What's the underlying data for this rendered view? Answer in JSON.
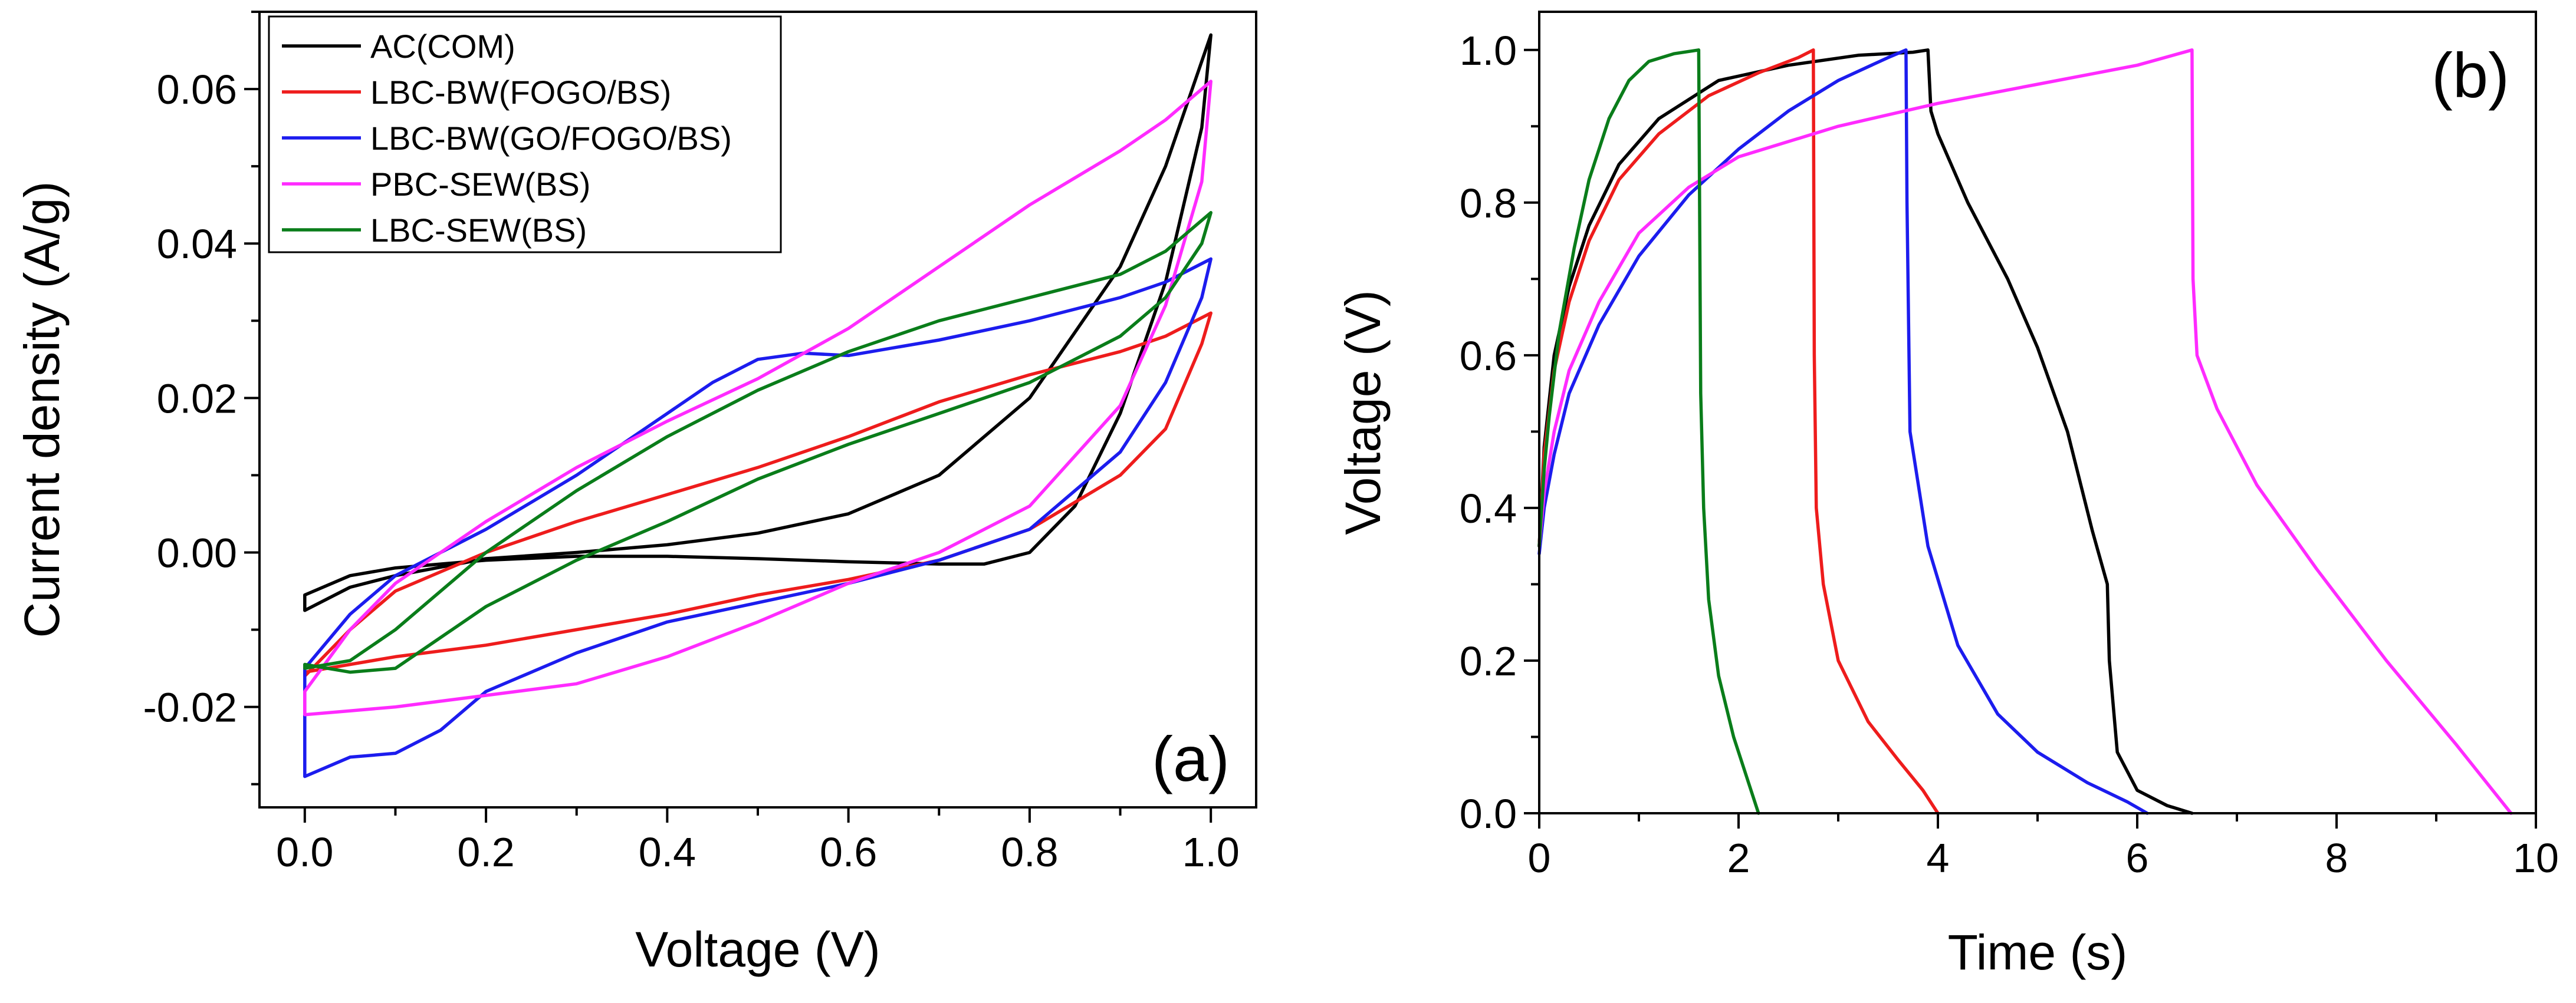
{
  "colors": {
    "black": "#000000",
    "red": "#ee1c1c",
    "blue": "#1c1cee",
    "magenta": "#ff2bff",
    "green": "#0a7d1a"
  },
  "chart_data": [
    {
      "id": "a",
      "type": "line",
      "panel_label": "(a)",
      "xlabel": "Voltage (V)",
      "ylabel": "Current density (A/g)",
      "xlim": [
        -0.05,
        1.05
      ],
      "ylim": [
        -0.033,
        0.07
      ],
      "xticks": [
        0.0,
        0.2,
        0.4,
        0.6,
        0.8,
        1.0
      ],
      "xtick_labels": [
        "0.0",
        "0.2",
        "0.4",
        "0.6",
        "0.8",
        "1.0"
      ],
      "yticks": [
        -0.02,
        0.0,
        0.02,
        0.04,
        0.06
      ],
      "ytick_labels": [
        "-0.02",
        "0.00",
        "0.02",
        "0.04",
        "0.06"
      ],
      "grid": false,
      "legend": "top-left",
      "series": [
        {
          "name": "AC(COM)",
          "color": "#000000",
          "x": [
            0.0,
            0.05,
            0.1,
            0.2,
            0.3,
            0.4,
            0.5,
            0.6,
            0.7,
            0.8,
            0.9,
            0.95,
            1.0,
            0.99,
            0.95,
            0.9,
            0.85,
            0.8,
            0.75,
            0.7,
            0.6,
            0.5,
            0.4,
            0.3,
            0.2,
            0.1,
            0.05,
            0.0
          ],
          "y": [
            -0.0075,
            -0.0045,
            -0.003,
            -0.0008,
            0.0,
            0.001,
            0.0025,
            0.005,
            0.01,
            0.02,
            0.037,
            0.05,
            0.067,
            0.055,
            0.035,
            0.018,
            0.006,
            0.0,
            -0.0015,
            -0.0015,
            -0.0012,
            -0.0008,
            -0.0005,
            -0.0005,
            -0.001,
            -0.002,
            -0.003,
            -0.0055
          ]
        },
        {
          "name": "LBC-BW(FOGO/BS)",
          "color": "#ee1c1c",
          "x": [
            0.0,
            0.05,
            0.1,
            0.2,
            0.3,
            0.4,
            0.5,
            0.6,
            0.7,
            0.8,
            0.9,
            0.95,
            1.0,
            0.99,
            0.95,
            0.9,
            0.8,
            0.7,
            0.6,
            0.5,
            0.4,
            0.3,
            0.2,
            0.1,
            0.05,
            0.0
          ],
          "y": [
            -0.016,
            -0.01,
            -0.005,
            0.0,
            0.004,
            0.0075,
            0.011,
            0.015,
            0.0195,
            0.023,
            0.026,
            0.028,
            0.031,
            0.027,
            0.016,
            0.01,
            0.003,
            -0.001,
            -0.0035,
            -0.0055,
            -0.008,
            -0.01,
            -0.012,
            -0.0135,
            -0.0145,
            -0.0155
          ]
        },
        {
          "name": "LBC-BW(GO/FOGO/BS)",
          "color": "#1c1cee",
          "x": [
            0.0,
            0.05,
            0.1,
            0.2,
            0.3,
            0.4,
            0.45,
            0.5,
            0.55,
            0.6,
            0.7,
            0.8,
            0.9,
            0.95,
            1.0,
            0.99,
            0.95,
            0.9,
            0.8,
            0.7,
            0.6,
            0.5,
            0.4,
            0.3,
            0.2,
            0.15,
            0.1,
            0.05,
            0.0
          ],
          "y": [
            -0.015,
            -0.008,
            -0.003,
            0.003,
            0.01,
            0.018,
            0.022,
            0.025,
            0.0258,
            0.0255,
            0.0275,
            0.03,
            0.033,
            0.035,
            0.038,
            0.033,
            0.022,
            0.013,
            0.003,
            -0.001,
            -0.004,
            -0.0065,
            -0.009,
            -0.013,
            -0.018,
            -0.023,
            -0.026,
            -0.0265,
            -0.029
          ]
        },
        {
          "name": "PBC-SEW(BS)",
          "color": "#ff2bff",
          "x": [
            0.0,
            0.05,
            0.1,
            0.2,
            0.3,
            0.4,
            0.5,
            0.6,
            0.7,
            0.8,
            0.9,
            0.95,
            1.0,
            0.99,
            0.95,
            0.9,
            0.8,
            0.7,
            0.6,
            0.5,
            0.4,
            0.3,
            0.2,
            0.1,
            0.05,
            0.0
          ],
          "y": [
            -0.018,
            -0.01,
            -0.004,
            0.004,
            0.011,
            0.017,
            0.0225,
            0.029,
            0.037,
            0.045,
            0.052,
            0.056,
            0.061,
            0.048,
            0.032,
            0.019,
            0.006,
            0.0,
            -0.004,
            -0.009,
            -0.0135,
            -0.017,
            -0.0185,
            -0.02,
            -0.0205,
            -0.021
          ]
        },
        {
          "name": "LBC-SEW(BS)",
          "color": "#0a7d1a",
          "x": [
            0.0,
            0.05,
            0.1,
            0.2,
            0.3,
            0.4,
            0.5,
            0.6,
            0.7,
            0.8,
            0.9,
            0.95,
            1.0,
            0.99,
            0.95,
            0.9,
            0.8,
            0.7,
            0.6,
            0.5,
            0.4,
            0.3,
            0.2,
            0.15,
            0.1,
            0.05,
            0.0
          ],
          "y": [
            -0.015,
            -0.014,
            -0.01,
            0.0,
            0.008,
            0.015,
            0.021,
            0.026,
            0.03,
            0.033,
            0.036,
            0.039,
            0.044,
            0.04,
            0.033,
            0.028,
            0.022,
            0.018,
            0.014,
            0.0095,
            0.004,
            -0.001,
            -0.007,
            -0.011,
            -0.015,
            -0.0155,
            -0.0145
          ]
        }
      ]
    },
    {
      "id": "b",
      "type": "line",
      "panel_label": "(b)",
      "xlabel": "Time (s)",
      "ylabel": "Voltage (V)",
      "xlim": [
        0,
        10
      ],
      "ylim": [
        0.0,
        1.05
      ],
      "xticks": [
        0,
        2,
        4,
        6,
        8,
        10
      ],
      "xtick_labels": [
        "0",
        "2",
        "4",
        "6",
        "8",
        "10"
      ],
      "yticks": [
        0.0,
        0.2,
        0.4,
        0.6,
        0.8,
        1.0
      ],
      "ytick_labels": [
        "0.0",
        "0.2",
        "0.4",
        "0.6",
        "0.8",
        "1.0"
      ],
      "grid": false,
      "series": [
        {
          "color": "#000000",
          "x": [
            0.0,
            0.05,
            0.15,
            0.3,
            0.5,
            0.8,
            1.2,
            1.8,
            2.5,
            3.2,
            3.75,
            3.9,
            3.93,
            4.0,
            4.3,
            4.7,
            5.0,
            5.3,
            5.55,
            5.7,
            5.72,
            5.8,
            6.0,
            6.3,
            6.55
          ],
          "y": [
            0.35,
            0.48,
            0.6,
            0.69,
            0.77,
            0.85,
            0.91,
            0.96,
            0.98,
            0.993,
            0.997,
            1.0,
            0.92,
            0.89,
            0.8,
            0.7,
            0.61,
            0.5,
            0.37,
            0.3,
            0.2,
            0.08,
            0.03,
            0.01,
            0.0
          ]
        },
        {
          "color": "#ee1c1c",
          "x": [
            0.0,
            0.05,
            0.15,
            0.3,
            0.5,
            0.8,
            1.2,
            1.7,
            2.2,
            2.6,
            2.75,
            2.76,
            2.78,
            2.85,
            3.0,
            3.3,
            3.6,
            3.85,
            4.0
          ],
          "y": [
            0.35,
            0.47,
            0.58,
            0.67,
            0.75,
            0.83,
            0.89,
            0.94,
            0.97,
            0.99,
            1.0,
            0.6,
            0.4,
            0.3,
            0.2,
            0.12,
            0.07,
            0.03,
            0.0
          ]
        },
        {
          "color": "#1c1cee",
          "x": [
            0.0,
            0.05,
            0.15,
            0.3,
            0.6,
            1.0,
            1.5,
            2.0,
            2.5,
            3.0,
            3.5,
            3.68,
            3.69,
            3.72,
            3.9,
            4.2,
            4.6,
            5.0,
            5.5,
            5.9,
            6.1
          ],
          "y": [
            0.34,
            0.4,
            0.47,
            0.55,
            0.64,
            0.73,
            0.81,
            0.87,
            0.92,
            0.96,
            0.99,
            1.0,
            0.8,
            0.5,
            0.35,
            0.22,
            0.13,
            0.08,
            0.04,
            0.015,
            0.0
          ]
        },
        {
          "color": "#ff2bff",
          "x": [
            0.0,
            0.05,
            0.15,
            0.3,
            0.6,
            1.0,
            1.5,
            2.0,
            3.0,
            4.0,
            5.0,
            6.0,
            6.55,
            6.56,
            6.6,
            6.8,
            7.2,
            7.8,
            8.5,
            9.2,
            9.75
          ],
          "y": [
            0.35,
            0.42,
            0.5,
            0.58,
            0.67,
            0.76,
            0.82,
            0.86,
            0.9,
            0.93,
            0.955,
            0.98,
            1.0,
            0.7,
            0.6,
            0.53,
            0.43,
            0.32,
            0.2,
            0.09,
            0.0
          ]
        },
        {
          "color": "#0a7d1a",
          "x": [
            0.0,
            0.05,
            0.1,
            0.2,
            0.35,
            0.5,
            0.7,
            0.9,
            1.1,
            1.35,
            1.6,
            1.62,
            1.65,
            1.7,
            1.8,
            1.95,
            2.1,
            2.2
          ],
          "y": [
            0.35,
            0.45,
            0.52,
            0.63,
            0.74,
            0.83,
            0.91,
            0.96,
            0.985,
            0.995,
            1.0,
            0.55,
            0.4,
            0.28,
            0.18,
            0.1,
            0.04,
            0.0
          ]
        }
      ]
    }
  ]
}
